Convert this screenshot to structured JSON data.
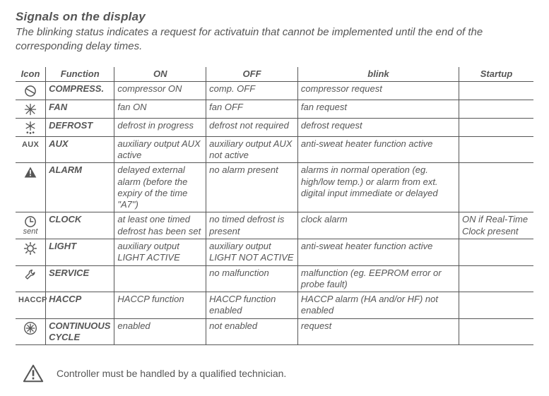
{
  "title": "Signals on the display",
  "subtitle": "The blinking status indicates a request for activatuin that cannot be implemented until the end of the corresponding delay times.",
  "columns": {
    "icon": "Icon",
    "function": "Function",
    "on": "ON",
    "off": "OFF",
    "blink": "blink",
    "startup": "Startup"
  },
  "rows": [
    {
      "icon": "compressor",
      "icon_label": "",
      "function": "COMPRESS.",
      "on": "compressor ON",
      "off": "comp. OFF",
      "blink": "compressor request",
      "startup": ""
    },
    {
      "icon": "fan",
      "icon_label": "",
      "function": "FAN",
      "on": "fan ON",
      "off": "fan OFF",
      "blink": "fan request",
      "startup": ""
    },
    {
      "icon": "defrost",
      "icon_label": "",
      "function": "DEFROST",
      "on": "defrost in progress",
      "off": "defrost not required",
      "blink": "defrost request",
      "startup": ""
    },
    {
      "icon": "aux",
      "icon_label": "AUX",
      "function": "AUX",
      "on": "auxiliary output AUX active",
      "off": "auxiliary output AUX not active",
      "blink": "anti-sweat heater function active",
      "startup": ""
    },
    {
      "icon": "alarm",
      "icon_label": "",
      "function": "ALARM",
      "on": "delayed external alarm (before the expiry of the time \"A7\")",
      "off": "no alarm present",
      "blink": "alarms in normal operation (eg. high/low temp.) or alarm from ext. digital input immediate or delayed",
      "startup": ""
    },
    {
      "icon": "clock",
      "icon_label": "sent",
      "function": "CLOCK",
      "on": "at least one timed defrost has been set",
      "off": "no timed defrost is present",
      "blink": "clock alarm",
      "startup": "ON if Real-Time Clock present"
    },
    {
      "icon": "light",
      "icon_label": "",
      "function": "LIGHT",
      "on": "auxiliary output LIGHT ACTIVE",
      "off": "auxiliary output LIGHT NOT ACTIVE",
      "blink": "anti-sweat heater function active",
      "startup": ""
    },
    {
      "icon": "service",
      "icon_label": "",
      "function": "SERVICE",
      "on": "",
      "off": "no malfunction",
      "blink": "malfunction (eg. EEPROM error or probe fault)",
      "startup": ""
    },
    {
      "icon": "haccp",
      "icon_label": "HACCP",
      "function": "HACCP",
      "on": "HACCP function",
      "off": "HACCP function enabled",
      "blink": "HACCP alarm (HA and/or HF) not enabled",
      "startup": ""
    },
    {
      "icon": "cycle",
      "icon_label": "",
      "function": "CONTINUOUS CYCLE",
      "on": "enabled",
      "off": "not enabled",
      "blink": "request",
      "startup": ""
    }
  ],
  "footer": "Controller must be handled by a qualified  technician.",
  "colors": {
    "text": "#565656",
    "border": "#565656",
    "background": "#ffffff"
  },
  "icons": {
    "compressor": "compressor-icon",
    "fan": "fan-icon",
    "defrost": "snowflake-drops-icon",
    "aux": "aux-text-icon",
    "alarm": "warning-triangle-icon",
    "clock": "clock-icon",
    "light": "lightbulb-icon",
    "service": "wrench-icon",
    "haccp": "haccp-text-icon",
    "cycle": "snowflake-cycle-icon"
  }
}
